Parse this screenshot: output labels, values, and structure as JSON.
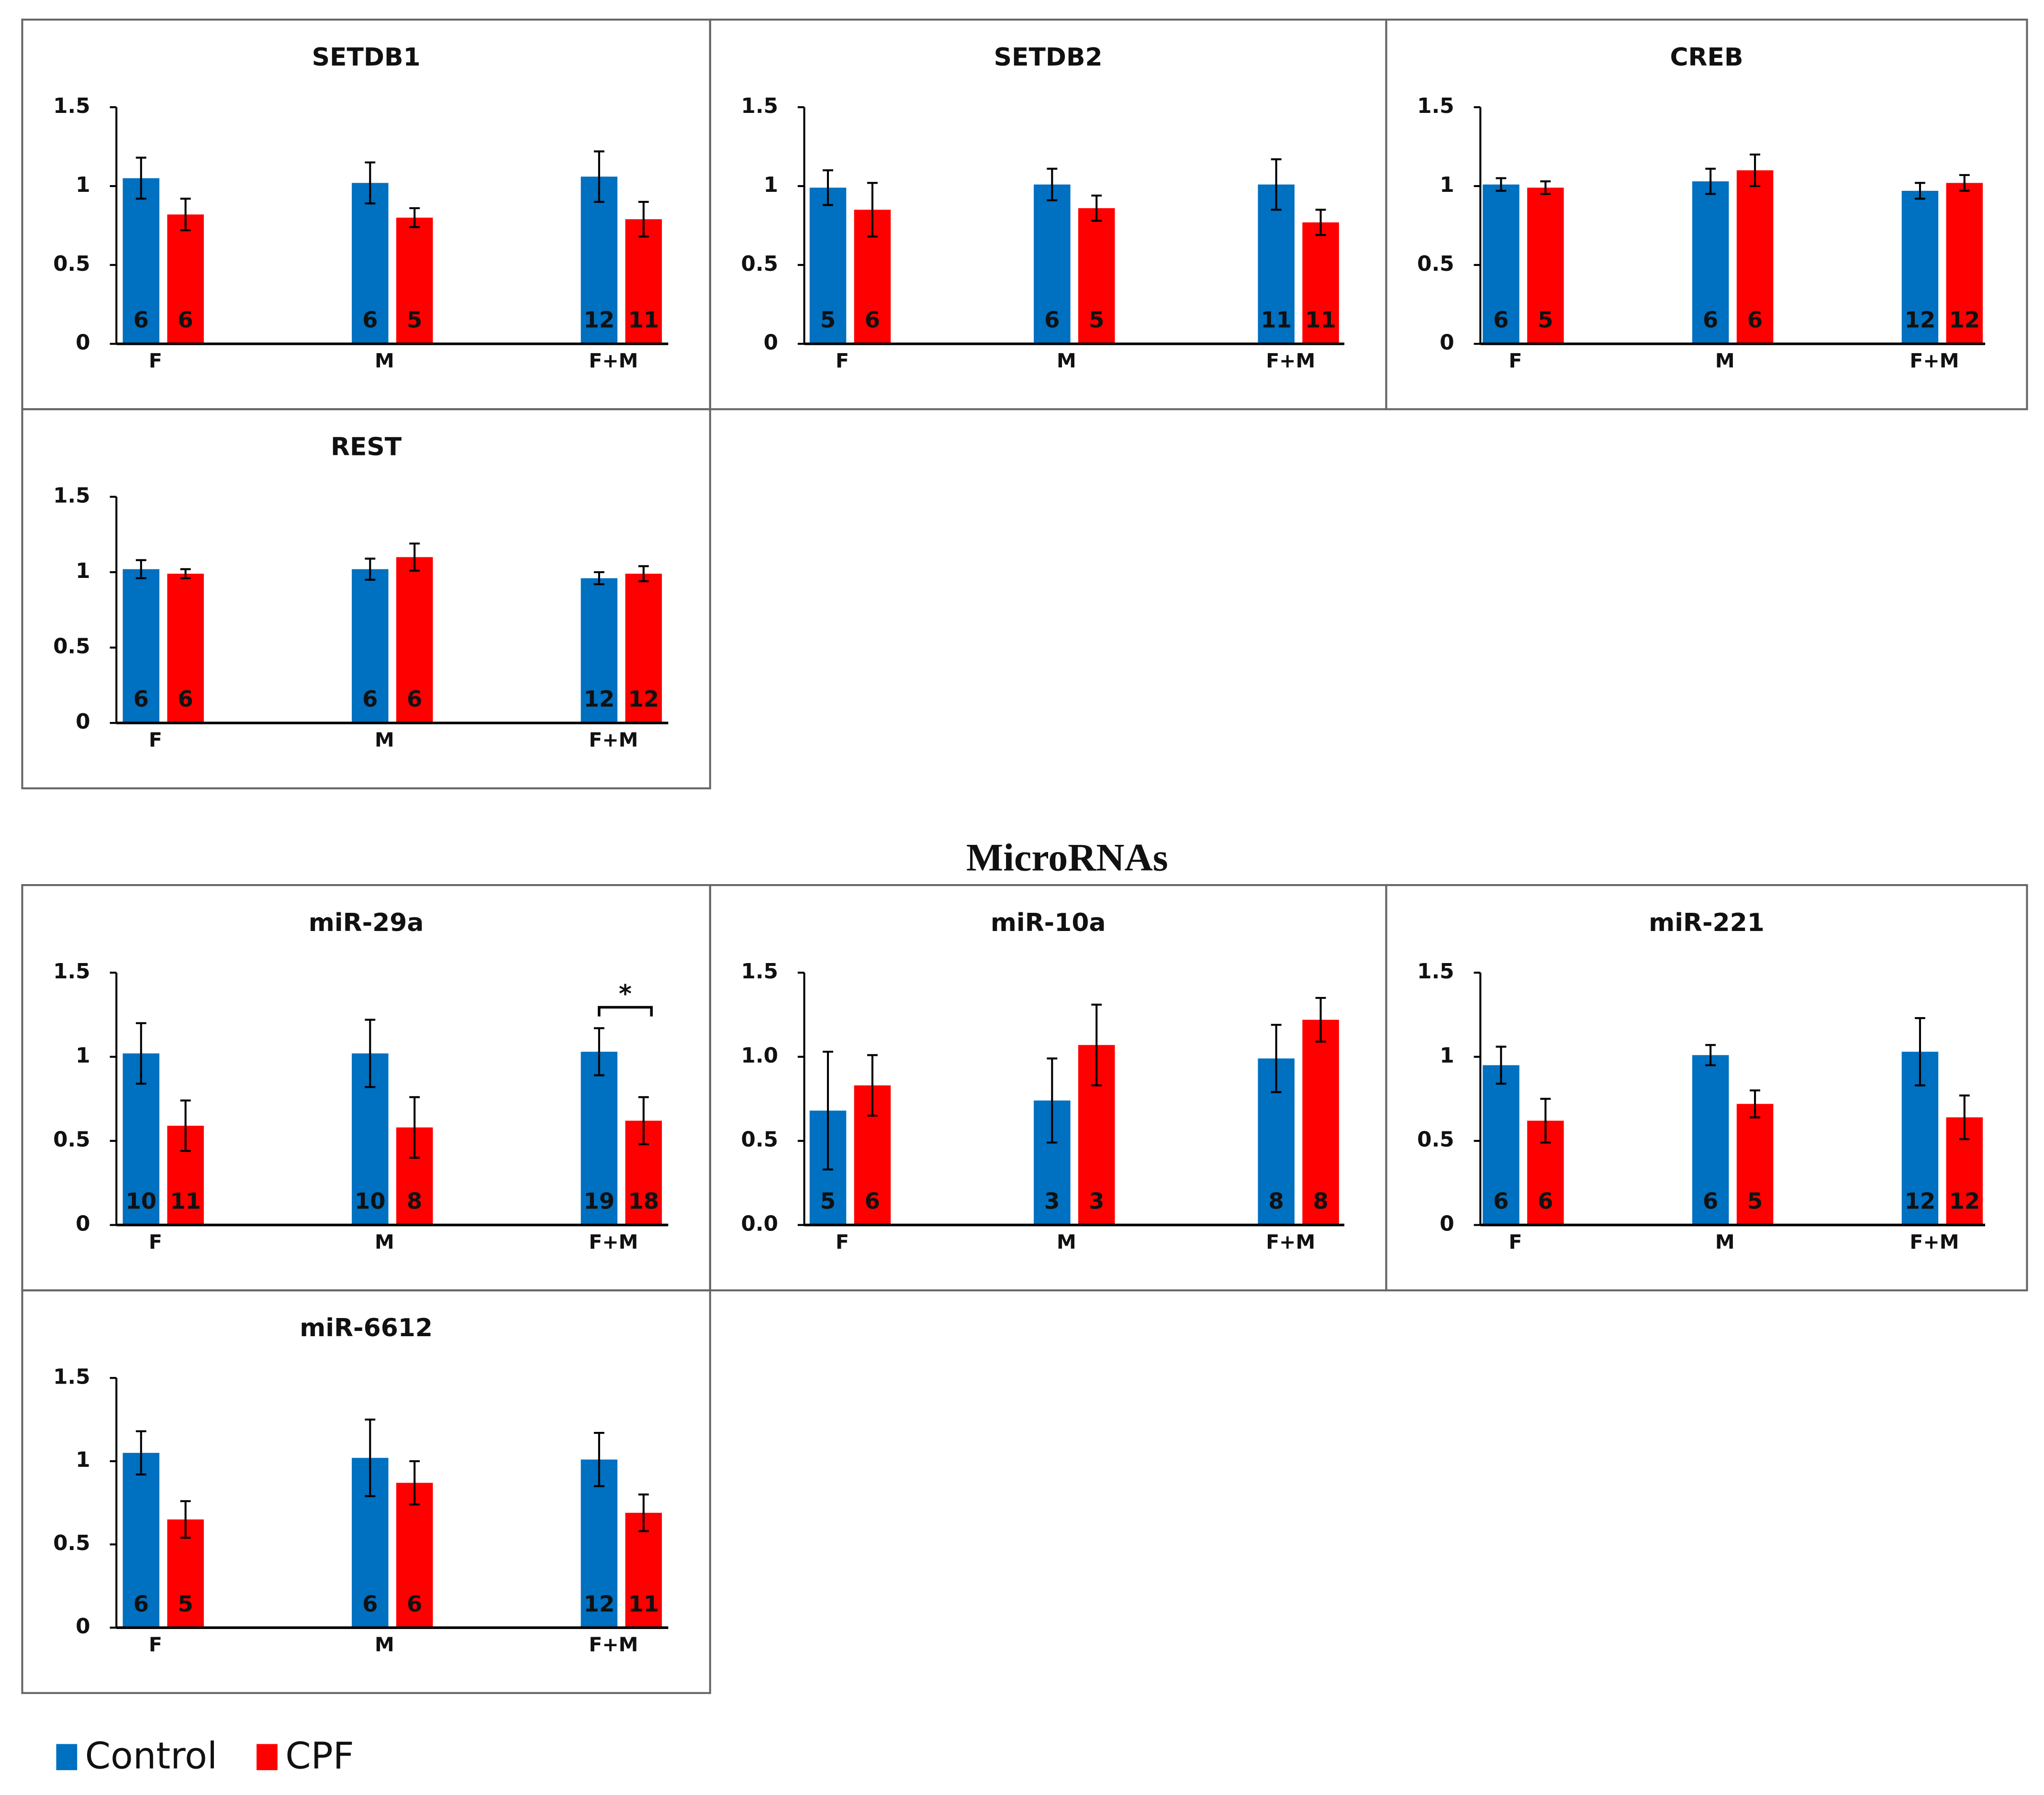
{
  "section_title": "MicroRNAs",
  "chart_data": [
    {
      "type": "bar",
      "title": "SETDB1",
      "categories": [
        "F",
        "M",
        "F+M"
      ],
      "ylim": [
        0,
        1.5
      ],
      "yticks": [
        0,
        0.5,
        1,
        1.5
      ],
      "series": [
        {
          "name": "Control",
          "color": "#0070c0",
          "values": [
            1.05,
            1.02,
            1.06
          ],
          "errors": [
            0.13,
            0.13,
            0.16
          ],
          "n": [
            6,
            6,
            12
          ]
        },
        {
          "name": "CPF",
          "color": "#ff0000",
          "values": [
            0.82,
            0.8,
            0.79
          ],
          "errors": [
            0.1,
            0.06,
            0.11
          ],
          "n": [
            6,
            5,
            11
          ]
        }
      ]
    },
    {
      "type": "bar",
      "title": "SETDB2",
      "categories": [
        "F",
        "M",
        "F+M"
      ],
      "ylim": [
        0,
        1.5
      ],
      "yticks": [
        0,
        0.5,
        1,
        1.5
      ],
      "series": [
        {
          "name": "Control",
          "color": "#0070c0",
          "values": [
            0.99,
            1.01,
            1.01
          ],
          "errors": [
            0.11,
            0.1,
            0.16
          ],
          "n": [
            5,
            6,
            11
          ]
        },
        {
          "name": "CPF",
          "color": "#ff0000",
          "values": [
            0.85,
            0.86,
            0.77
          ],
          "errors": [
            0.17,
            0.08,
            0.08
          ],
          "n": [
            6,
            5,
            11
          ]
        }
      ]
    },
    {
      "type": "bar",
      "title": "CREB",
      "categories": [
        "F",
        "M",
        "F+M"
      ],
      "ylim": [
        0,
        1.5
      ],
      "yticks": [
        0,
        0.5,
        1,
        1.5
      ],
      "series": [
        {
          "name": "Control",
          "color": "#0070c0",
          "values": [
            1.01,
            1.03,
            0.97
          ],
          "errors": [
            0.04,
            0.08,
            0.05
          ],
          "n": [
            6,
            6,
            12
          ]
        },
        {
          "name": "CPF",
          "color": "#ff0000",
          "values": [
            0.99,
            1.1,
            1.02
          ],
          "errors": [
            0.04,
            0.1,
            0.05
          ],
          "n": [
            5,
            6,
            12
          ]
        }
      ]
    },
    {
      "type": "bar",
      "title": "REST",
      "categories": [
        "F",
        "M",
        "F+M"
      ],
      "ylim": [
        0,
        1.5
      ],
      "yticks": [
        0,
        0.5,
        1,
        1.5
      ],
      "series": [
        {
          "name": "Control",
          "color": "#0070c0",
          "values": [
            1.02,
            1.02,
            0.96
          ],
          "errors": [
            0.06,
            0.07,
            0.04
          ],
          "n": [
            6,
            6,
            12
          ]
        },
        {
          "name": "CPF",
          "color": "#ff0000",
          "values": [
            0.99,
            1.1,
            0.99
          ],
          "errors": [
            0.03,
            0.09,
            0.05
          ],
          "n": [
            6,
            6,
            12
          ]
        }
      ]
    },
    {
      "type": "bar",
      "title": "miR-29a",
      "categories": [
        "F",
        "M",
        "F+M"
      ],
      "ylim": [
        0,
        1.5
      ],
      "yticks": [
        0,
        0.5,
        1,
        1.5
      ],
      "annotation": "*",
      "series": [
        {
          "name": "Control",
          "color": "#0070c0",
          "values": [
            1.02,
            1.02,
            1.03
          ],
          "errors": [
            0.18,
            0.2,
            0.14
          ],
          "n": [
            10,
            10,
            19
          ]
        },
        {
          "name": "CPF",
          "color": "#ff0000",
          "values": [
            0.59,
            0.58,
            0.62
          ],
          "errors": [
            0.15,
            0.18,
            0.14
          ],
          "n": [
            11,
            8,
            18
          ]
        }
      ]
    },
    {
      "type": "bar",
      "title": "miR-10a",
      "categories": [
        "F",
        "M",
        "F+M"
      ],
      "ylim": [
        0,
        1.5
      ],
      "yticks": [
        {
          "value": 0,
          "label": "0.0"
        },
        0.5,
        {
          "value": 1,
          "label": "1.0"
        },
        1.5
      ],
      "series": [
        {
          "name": "Control",
          "color": "#0070c0",
          "values": [
            0.68,
            0.74,
            0.99
          ],
          "errors": [
            0.35,
            0.25,
            0.2
          ],
          "n": [
            5,
            3,
            8
          ]
        },
        {
          "name": "CPF",
          "color": "#ff0000",
          "values": [
            0.83,
            1.07,
            1.22
          ],
          "errors": [
            0.18,
            0.24,
            0.13
          ],
          "n": [
            6,
            3,
            8
          ]
        }
      ]
    },
    {
      "type": "bar",
      "title": "miR-221",
      "categories": [
        "F",
        "M",
        "F+M"
      ],
      "ylim": [
        0,
        1.5
      ],
      "yticks": [
        0,
        0.5,
        1,
        1.5
      ],
      "series": [
        {
          "name": "Control",
          "color": "#0070c0",
          "values": [
            0.95,
            1.01,
            1.03
          ],
          "errors": [
            0.11,
            0.06,
            0.2
          ],
          "n": [
            6,
            6,
            12
          ]
        },
        {
          "name": "CPF",
          "color": "#ff0000",
          "values": [
            0.62,
            0.72,
            0.64
          ],
          "errors": [
            0.13,
            0.08,
            0.13
          ],
          "n": [
            6,
            5,
            12
          ]
        }
      ]
    },
    {
      "type": "bar",
      "title": "miR-6612",
      "categories": [
        "F",
        "M",
        "F+M"
      ],
      "ylim": [
        0,
        1.5
      ],
      "yticks": [
        0,
        0.5,
        1,
        1.5
      ],
      "series": [
        {
          "name": "Control",
          "color": "#0070c0",
          "values": [
            1.05,
            1.02,
            1.01
          ],
          "errors": [
            0.13,
            0.23,
            0.16
          ],
          "n": [
            6,
            6,
            12
          ]
        },
        {
          "name": "CPF",
          "color": "#ff0000",
          "values": [
            0.65,
            0.87,
            0.69
          ],
          "errors": [
            0.11,
            0.13,
            0.11
          ],
          "n": [
            5,
            6,
            11
          ]
        }
      ]
    }
  ]
}
